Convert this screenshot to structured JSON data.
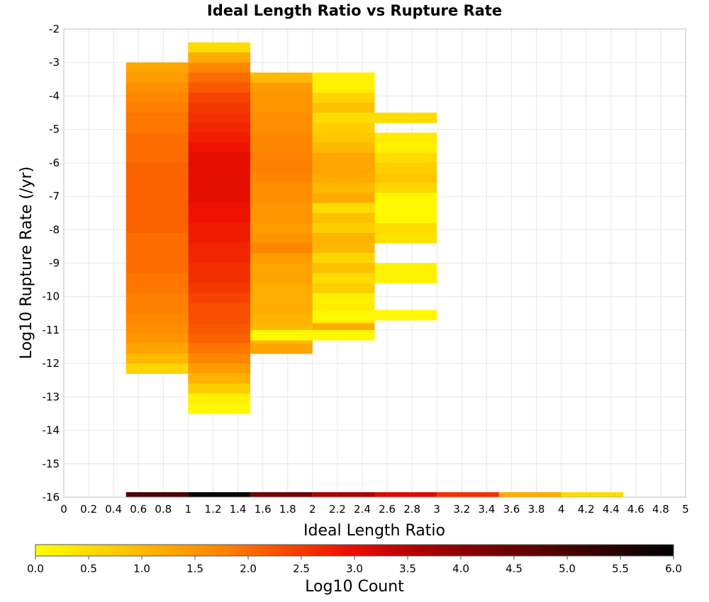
{
  "chart_data": {
    "type": "heatmap",
    "title": "Ideal Length Ratio vs Rupture Rate",
    "xlabel": "Ideal Length Ratio",
    "ylabel": "Log10 Rupture Rate (/yr)",
    "xlim": [
      0,
      5
    ],
    "ylim": [
      -16,
      -2
    ],
    "x_ticks": [
      0,
      0.2,
      0.4,
      0.6,
      0.8,
      1,
      1.2,
      1.4,
      1.6,
      1.8,
      2,
      2.2,
      2.4,
      2.6,
      2.8,
      3,
      3.2,
      3.4,
      3.6,
      3.8,
      4,
      4.2,
      4.4,
      4.6,
      4.8,
      5
    ],
    "y_ticks": [
      -2,
      -3,
      -4,
      -5,
      -6,
      -7,
      -8,
      -9,
      -10,
      -11,
      -12,
      -13,
      -14,
      -15,
      -16
    ],
    "grid": true,
    "colorbar": {
      "label": "Log10 Count",
      "range": [
        0,
        6
      ],
      "ticks": [
        "0.0",
        "0.5",
        "1.0",
        "1.5",
        "2.0",
        "2.5",
        "3.0",
        "3.5",
        "4.0",
        "4.5",
        "5.0",
        "5.5",
        "6.0"
      ],
      "stops": [
        {
          "v": 0.0,
          "color": "#ffff00"
        },
        {
          "v": 0.9,
          "color": "#ffc000"
        },
        {
          "v": 1.8,
          "color": "#ff8000"
        },
        {
          "v": 2.9,
          "color": "#ee1100"
        },
        {
          "v": 3.6,
          "color": "#b00000"
        },
        {
          "v": 4.3,
          "color": "#780000"
        },
        {
          "v": 5.0,
          "color": "#4a0000"
        },
        {
          "v": 6.0,
          "color": "#000000"
        }
      ]
    },
    "x_bin_width": 0.5,
    "y_bin_height": 0.3,
    "columns": [
      {
        "x0": 0.5,
        "y_top": -3.0,
        "values": [
          1.3,
          1.4,
          1.6,
          1.7,
          1.8,
          1.9,
          1.9,
          2.0,
          2.0,
          2.0,
          2.1,
          2.1,
          2.1,
          2.1,
          2.1,
          2.1,
          2.1,
          2.0,
          2.0,
          2.0,
          2.0,
          1.9,
          1.9,
          1.8,
          1.8,
          1.7,
          1.6,
          1.5,
          1.3,
          1.0,
          0.6
        ]
      },
      {
        "x0": 1.0,
        "y_top": -2.4,
        "values": [
          0.5,
          1.2,
          1.7,
          2.0,
          2.2,
          2.4,
          2.5,
          2.6,
          2.7,
          2.8,
          2.9,
          3.0,
          3.0,
          3.0,
          3.0,
          3.0,
          2.9,
          2.9,
          2.8,
          2.8,
          2.7,
          2.7,
          2.6,
          2.6,
          2.5,
          2.4,
          2.3,
          2.3,
          2.2,
          2.1,
          1.9,
          1.7,
          1.4,
          1.1,
          0.7,
          0.2,
          0.1
        ]
      },
      {
        "x0": 1.5,
        "y_top": -3.3,
        "values": [
          1.0,
          1.4,
          1.5,
          1.5,
          1.6,
          1.6,
          1.7,
          1.7,
          1.8,
          1.8,
          1.7,
          1.6,
          1.6,
          1.5,
          1.5,
          1.4,
          1.5,
          1.7,
          1.4,
          1.3,
          1.3,
          1.2,
          1.2,
          1.2,
          1.1,
          1.0,
          1.0,
          1.3
        ]
      },
      {
        "x0": 2.0,
        "y_top": -3.3,
        "values": [
          0.2,
          0.2,
          0.6,
          0.9,
          0.5,
          0.7,
          0.8,
          1.0,
          1.3,
          1.3,
          1.2,
          1.0,
          1.2,
          0.5,
          0.9,
          0.7,
          1.1,
          1.0,
          0.6,
          0.9,
          0.5,
          0.7,
          0.2,
          0.3,
          0.3,
          1.2
        ]
      },
      {
        "x0": 2.5,
        "y_top": -4.5,
        "values": [
          0.5,
          null,
          0.3,
          0.2,
          0.5,
          0.7,
          0.8,
          0.6,
          0.1,
          0.1,
          0.1,
          0.5,
          0.4
        ]
      },
      {
        "x0": 2.5,
        "y_top": -9.0,
        "values": [
          0.2,
          0.2
        ]
      },
      {
        "x0": 2.5,
        "y_top": -10.4,
        "values": [
          0.1
        ]
      },
      {
        "x0": 2.0,
        "y_top": -10.4,
        "values": [
          0.1
        ]
      },
      {
        "x0": 1.5,
        "y_top": -11.0,
        "values": [
          0.1
        ]
      },
      {
        "x0": 2.0,
        "y_top": -11.0,
        "values": [
          0.1
        ]
      }
    ],
    "bottom_row": {
      "y_top": -15.85,
      "y_bottom": -16.0,
      "cells": [
        {
          "x0": 0.5,
          "value": 5.0
        },
        {
          "x0": 1.0,
          "value": 6.0
        },
        {
          "x0": 1.5,
          "value": 4.4
        },
        {
          "x0": 2.0,
          "value": 3.7
        },
        {
          "x0": 2.5,
          "value": 3.1
        },
        {
          "x0": 3.0,
          "value": 2.6
        },
        {
          "x0": 3.5,
          "value": 1.2
        },
        {
          "x0": 4.0,
          "value": 0.5
        }
      ]
    }
  }
}
